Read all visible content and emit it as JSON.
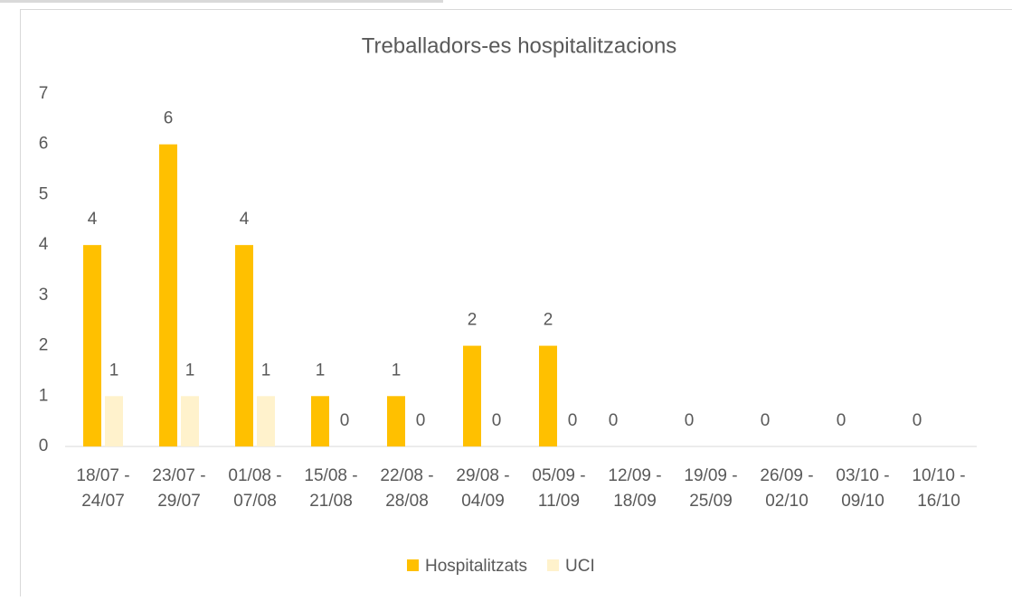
{
  "chart_data": {
    "type": "bar",
    "title": "Treballadors-es hospitalitzacions",
    "categories": [
      [
        "18/07 -",
        "24/07"
      ],
      [
        "23/07 -",
        "29/07"
      ],
      [
        "01/08 -",
        "07/08"
      ],
      [
        "15/08 -",
        "21/08"
      ],
      [
        "22/08 -",
        "28/08"
      ],
      [
        "29/08 -",
        "04/09"
      ],
      [
        "05/09 -",
        "11/09"
      ],
      [
        "12/09 -",
        "18/09"
      ],
      [
        "19/09 -",
        "25/09"
      ],
      [
        "26/09 -",
        "02/10"
      ],
      [
        "03/10 -",
        "09/10"
      ],
      [
        "10/10 -",
        "16/10"
      ]
    ],
    "series": [
      {
        "name": "Hospitalitzats",
        "color": "#FFC000",
        "values": [
          4,
          6,
          4,
          1,
          1,
          2,
          2,
          0,
          0,
          0,
          0,
          0
        ]
      },
      {
        "name": "UCI",
        "color": "#FFF2CC",
        "values": [
          1,
          1,
          1,
          0,
          0,
          0,
          0,
          0,
          0,
          0,
          0,
          0
        ],
        "value_labels": [
          "1",
          "1",
          "1",
          "0",
          "0",
          "0",
          "0",
          null,
          null,
          null,
          null,
          null
        ]
      }
    ],
    "ylim": [
      0,
      7
    ],
    "yticks": [
      0,
      1,
      2,
      3,
      4,
      5,
      6,
      7
    ],
    "grid": false,
    "legend": "bottom"
  }
}
